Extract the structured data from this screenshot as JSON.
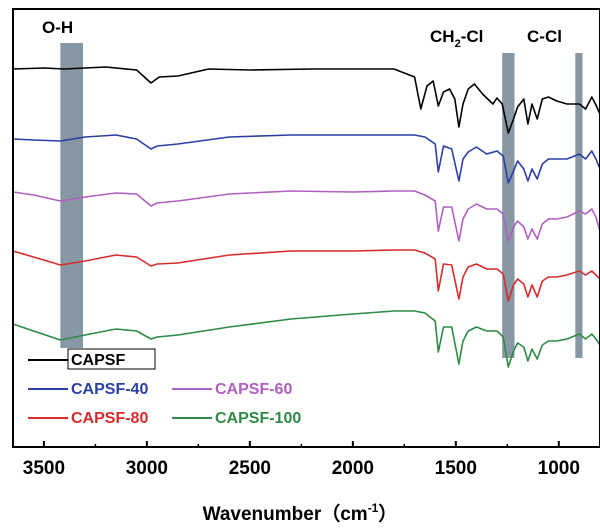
{
  "chart_data": {
    "type": "line",
    "title": "",
    "xlabel": "Wavenumber",
    "xlabel_unit": "cm-1",
    "ylabel": "",
    "xlim": [
      3650,
      800
    ],
    "x_reversed": true,
    "xticks": [
      3500,
      3000,
      2500,
      2000,
      1500,
      1000
    ],
    "xtick_labels": [
      "3500",
      "3000",
      "2500",
      "2000",
      "1500",
      "1000"
    ],
    "grid": false,
    "legend_position": "bottom-left",
    "annotations": [
      {
        "label": "O-H",
        "band": [
          3420,
          3310
        ]
      },
      {
        "label": "CH2-Cl",
        "band": [
          1275,
          1215
        ]
      },
      {
        "label": "C-Cl",
        "band": [
          920,
          885
        ]
      }
    ],
    "series": [
      {
        "name": "CAPSF",
        "color": "#000000",
        "points": [
          [
            3650,
            60
          ],
          [
            3500,
            59
          ],
          [
            3400,
            60
          ],
          [
            3200,
            58
          ],
          [
            3050,
            61
          ],
          [
            2980,
            74
          ],
          [
            2940,
            68
          ],
          [
            2850,
            67
          ],
          [
            2700,
            60
          ],
          [
            2500,
            61
          ],
          [
            2200,
            60
          ],
          [
            2000,
            60
          ],
          [
            1800,
            60
          ],
          [
            1700,
            68
          ],
          [
            1670,
            100
          ],
          [
            1640,
            77
          ],
          [
            1610,
            72
          ],
          [
            1585,
            97
          ],
          [
            1560,
            83
          ],
          [
            1530,
            80
          ],
          [
            1505,
            90
          ],
          [
            1485,
            118
          ],
          [
            1465,
            95
          ],
          [
            1440,
            80
          ],
          [
            1410,
            75
          ],
          [
            1370,
            85
          ],
          [
            1320,
            95
          ],
          [
            1300,
            89
          ],
          [
            1275,
            95
          ],
          [
            1245,
            124
          ],
          [
            1220,
            110
          ],
          [
            1200,
            98
          ],
          [
            1170,
            90
          ],
          [
            1150,
            115
          ],
          [
            1130,
            95
          ],
          [
            1105,
            110
          ],
          [
            1080,
            90
          ],
          [
            1050,
            88
          ],
          [
            1010,
            92
          ],
          [
            960,
            95
          ],
          [
            900,
            95
          ],
          [
            870,
            100
          ],
          [
            840,
            88
          ],
          [
            820,
            96
          ],
          [
            800,
            105
          ]
        ]
      },
      {
        "name": "CAPSF-40",
        "color": "#2b3fa8",
        "points": [
          [
            3650,
            130
          ],
          [
            3550,
            131
          ],
          [
            3420,
            132
          ],
          [
            3300,
            128
          ],
          [
            3150,
            126
          ],
          [
            3050,
            130
          ],
          [
            2980,
            140
          ],
          [
            2950,
            137
          ],
          [
            2850,
            135
          ],
          [
            2600,
            128
          ],
          [
            2300,
            126
          ],
          [
            2000,
            126
          ],
          [
            1800,
            126
          ],
          [
            1700,
            126
          ],
          [
            1650,
            128
          ],
          [
            1600,
            135
          ],
          [
            1585,
            163
          ],
          [
            1560,
            137
          ],
          [
            1520,
            140
          ],
          [
            1485,
            172
          ],
          [
            1465,
            150
          ],
          [
            1440,
            143
          ],
          [
            1400,
            138
          ],
          [
            1350,
            145
          ],
          [
            1300,
            142
          ],
          [
            1270,
            147
          ],
          [
            1245,
            174
          ],
          [
            1220,
            162
          ],
          [
            1200,
            152
          ],
          [
            1170,
            160
          ],
          [
            1150,
            172
          ],
          [
            1130,
            160
          ],
          [
            1105,
            170
          ],
          [
            1080,
            155
          ],
          [
            1050,
            150
          ],
          [
            1010,
            150
          ],
          [
            960,
            150
          ],
          [
            900,
            145
          ],
          [
            870,
            150
          ],
          [
            840,
            142
          ],
          [
            820,
            150
          ],
          [
            800,
            160
          ]
        ]
      },
      {
        "name": "CAPSF-60",
        "color": "#b060c0",
        "points": [
          [
            3650,
            183
          ],
          [
            3550,
            186
          ],
          [
            3420,
            192
          ],
          [
            3300,
            188
          ],
          [
            3150,
            184
          ],
          [
            3050,
            185
          ],
          [
            2980,
            197
          ],
          [
            2950,
            194
          ],
          [
            2850,
            192
          ],
          [
            2600,
            185
          ],
          [
            2300,
            182
          ],
          [
            2000,
            183
          ],
          [
            1800,
            182
          ],
          [
            1700,
            182
          ],
          [
            1650,
            186
          ],
          [
            1600,
            192
          ],
          [
            1585,
            222
          ],
          [
            1560,
            198
          ],
          [
            1520,
            198
          ],
          [
            1485,
            232
          ],
          [
            1465,
            210
          ],
          [
            1440,
            200
          ],
          [
            1400,
            195
          ],
          [
            1350,
            200
          ],
          [
            1300,
            200
          ],
          [
            1270,
            205
          ],
          [
            1245,
            232
          ],
          [
            1220,
            218
          ],
          [
            1200,
            212
          ],
          [
            1170,
            218
          ],
          [
            1150,
            230
          ],
          [
            1130,
            220
          ],
          [
            1105,
            230
          ],
          [
            1080,
            215
          ],
          [
            1050,
            210
          ],
          [
            1010,
            210
          ],
          [
            960,
            208
          ],
          [
            900,
            202
          ],
          [
            870,
            205
          ],
          [
            840,
            200
          ],
          [
            820,
            208
          ],
          [
            800,
            222
          ]
        ]
      },
      {
        "name": "CAPSF-80",
        "color": "#d62c2c",
        "points": [
          [
            3650,
            242
          ],
          [
            3550,
            248
          ],
          [
            3420,
            256
          ],
          [
            3300,
            252
          ],
          [
            3150,
            246
          ],
          [
            3050,
            248
          ],
          [
            2980,
            257
          ],
          [
            2950,
            255
          ],
          [
            2850,
            254
          ],
          [
            2600,
            246
          ],
          [
            2300,
            242
          ],
          [
            2000,
            242
          ],
          [
            1800,
            241
          ],
          [
            1700,
            241
          ],
          [
            1650,
            244
          ],
          [
            1600,
            250
          ],
          [
            1585,
            282
          ],
          [
            1560,
            255
          ],
          [
            1520,
            256
          ],
          [
            1485,
            290
          ],
          [
            1465,
            268
          ],
          [
            1440,
            258
          ],
          [
            1400,
            255
          ],
          [
            1350,
            260
          ],
          [
            1300,
            260
          ],
          [
            1270,
            265
          ],
          [
            1245,
            292
          ],
          [
            1220,
            276
          ],
          [
            1200,
            270
          ],
          [
            1170,
            275
          ],
          [
            1150,
            288
          ],
          [
            1130,
            276
          ],
          [
            1105,
            288
          ],
          [
            1080,
            272
          ],
          [
            1050,
            268
          ],
          [
            1010,
            268
          ],
          [
            960,
            266
          ],
          [
            900,
            262
          ],
          [
            870,
            266
          ],
          [
            840,
            262
          ],
          [
            820,
            266
          ],
          [
            800,
            270
          ]
        ]
      },
      {
        "name": "CAPSF-100",
        "color": "#2e8b44",
        "points": [
          [
            3650,
            315
          ],
          [
            3550,
            322
          ],
          [
            3420,
            331
          ],
          [
            3300,
            326
          ],
          [
            3150,
            320
          ],
          [
            3050,
            322
          ],
          [
            2980,
            330
          ],
          [
            2950,
            328
          ],
          [
            2850,
            326
          ],
          [
            2600,
            318
          ],
          [
            2300,
            310
          ],
          [
            2000,
            305
          ],
          [
            1800,
            302
          ],
          [
            1700,
            302
          ],
          [
            1650,
            304
          ],
          [
            1600,
            312
          ],
          [
            1585,
            343
          ],
          [
            1560,
            318
          ],
          [
            1520,
            318
          ],
          [
            1485,
            355
          ],
          [
            1465,
            332
          ],
          [
            1440,
            322
          ],
          [
            1400,
            318
          ],
          [
            1350,
            322
          ],
          [
            1300,
            322
          ],
          [
            1270,
            328
          ],
          [
            1245,
            358
          ],
          [
            1220,
            342
          ],
          [
            1200,
            334
          ],
          [
            1170,
            338
          ],
          [
            1150,
            352
          ],
          [
            1130,
            340
          ],
          [
            1105,
            350
          ],
          [
            1080,
            336
          ],
          [
            1050,
            332
          ],
          [
            1010,
            332
          ],
          [
            960,
            330
          ],
          [
            900,
            325
          ],
          [
            870,
            330
          ],
          [
            840,
            325
          ],
          [
            820,
            330
          ],
          [
            800,
            336
          ]
        ]
      }
    ]
  },
  "legend": {
    "items": [
      {
        "name": "CAPSF",
        "color": "#000000"
      },
      {
        "name": "CAPSF-40",
        "color": "#2b3fa8"
      },
      {
        "name": "CAPSF-60",
        "color": "#b060c0"
      },
      {
        "name": "CAPSF-80",
        "color": "#d62c2c"
      },
      {
        "name": "CAPSF-100",
        "color": "#2e8b44"
      }
    ]
  },
  "annotation_text": {
    "oh": "O-H",
    "ch2cl_prefix": "CH",
    "ch2cl_sub": "2",
    "ch2cl_suffix": "-Cl",
    "ccl": "C-Cl"
  },
  "axis_title": {
    "main": "Wavenumber",
    "unit_open": "（cm",
    "unit_sup": "-1",
    "unit_close": "）"
  },
  "colors": {
    "band": "#5f7585"
  }
}
